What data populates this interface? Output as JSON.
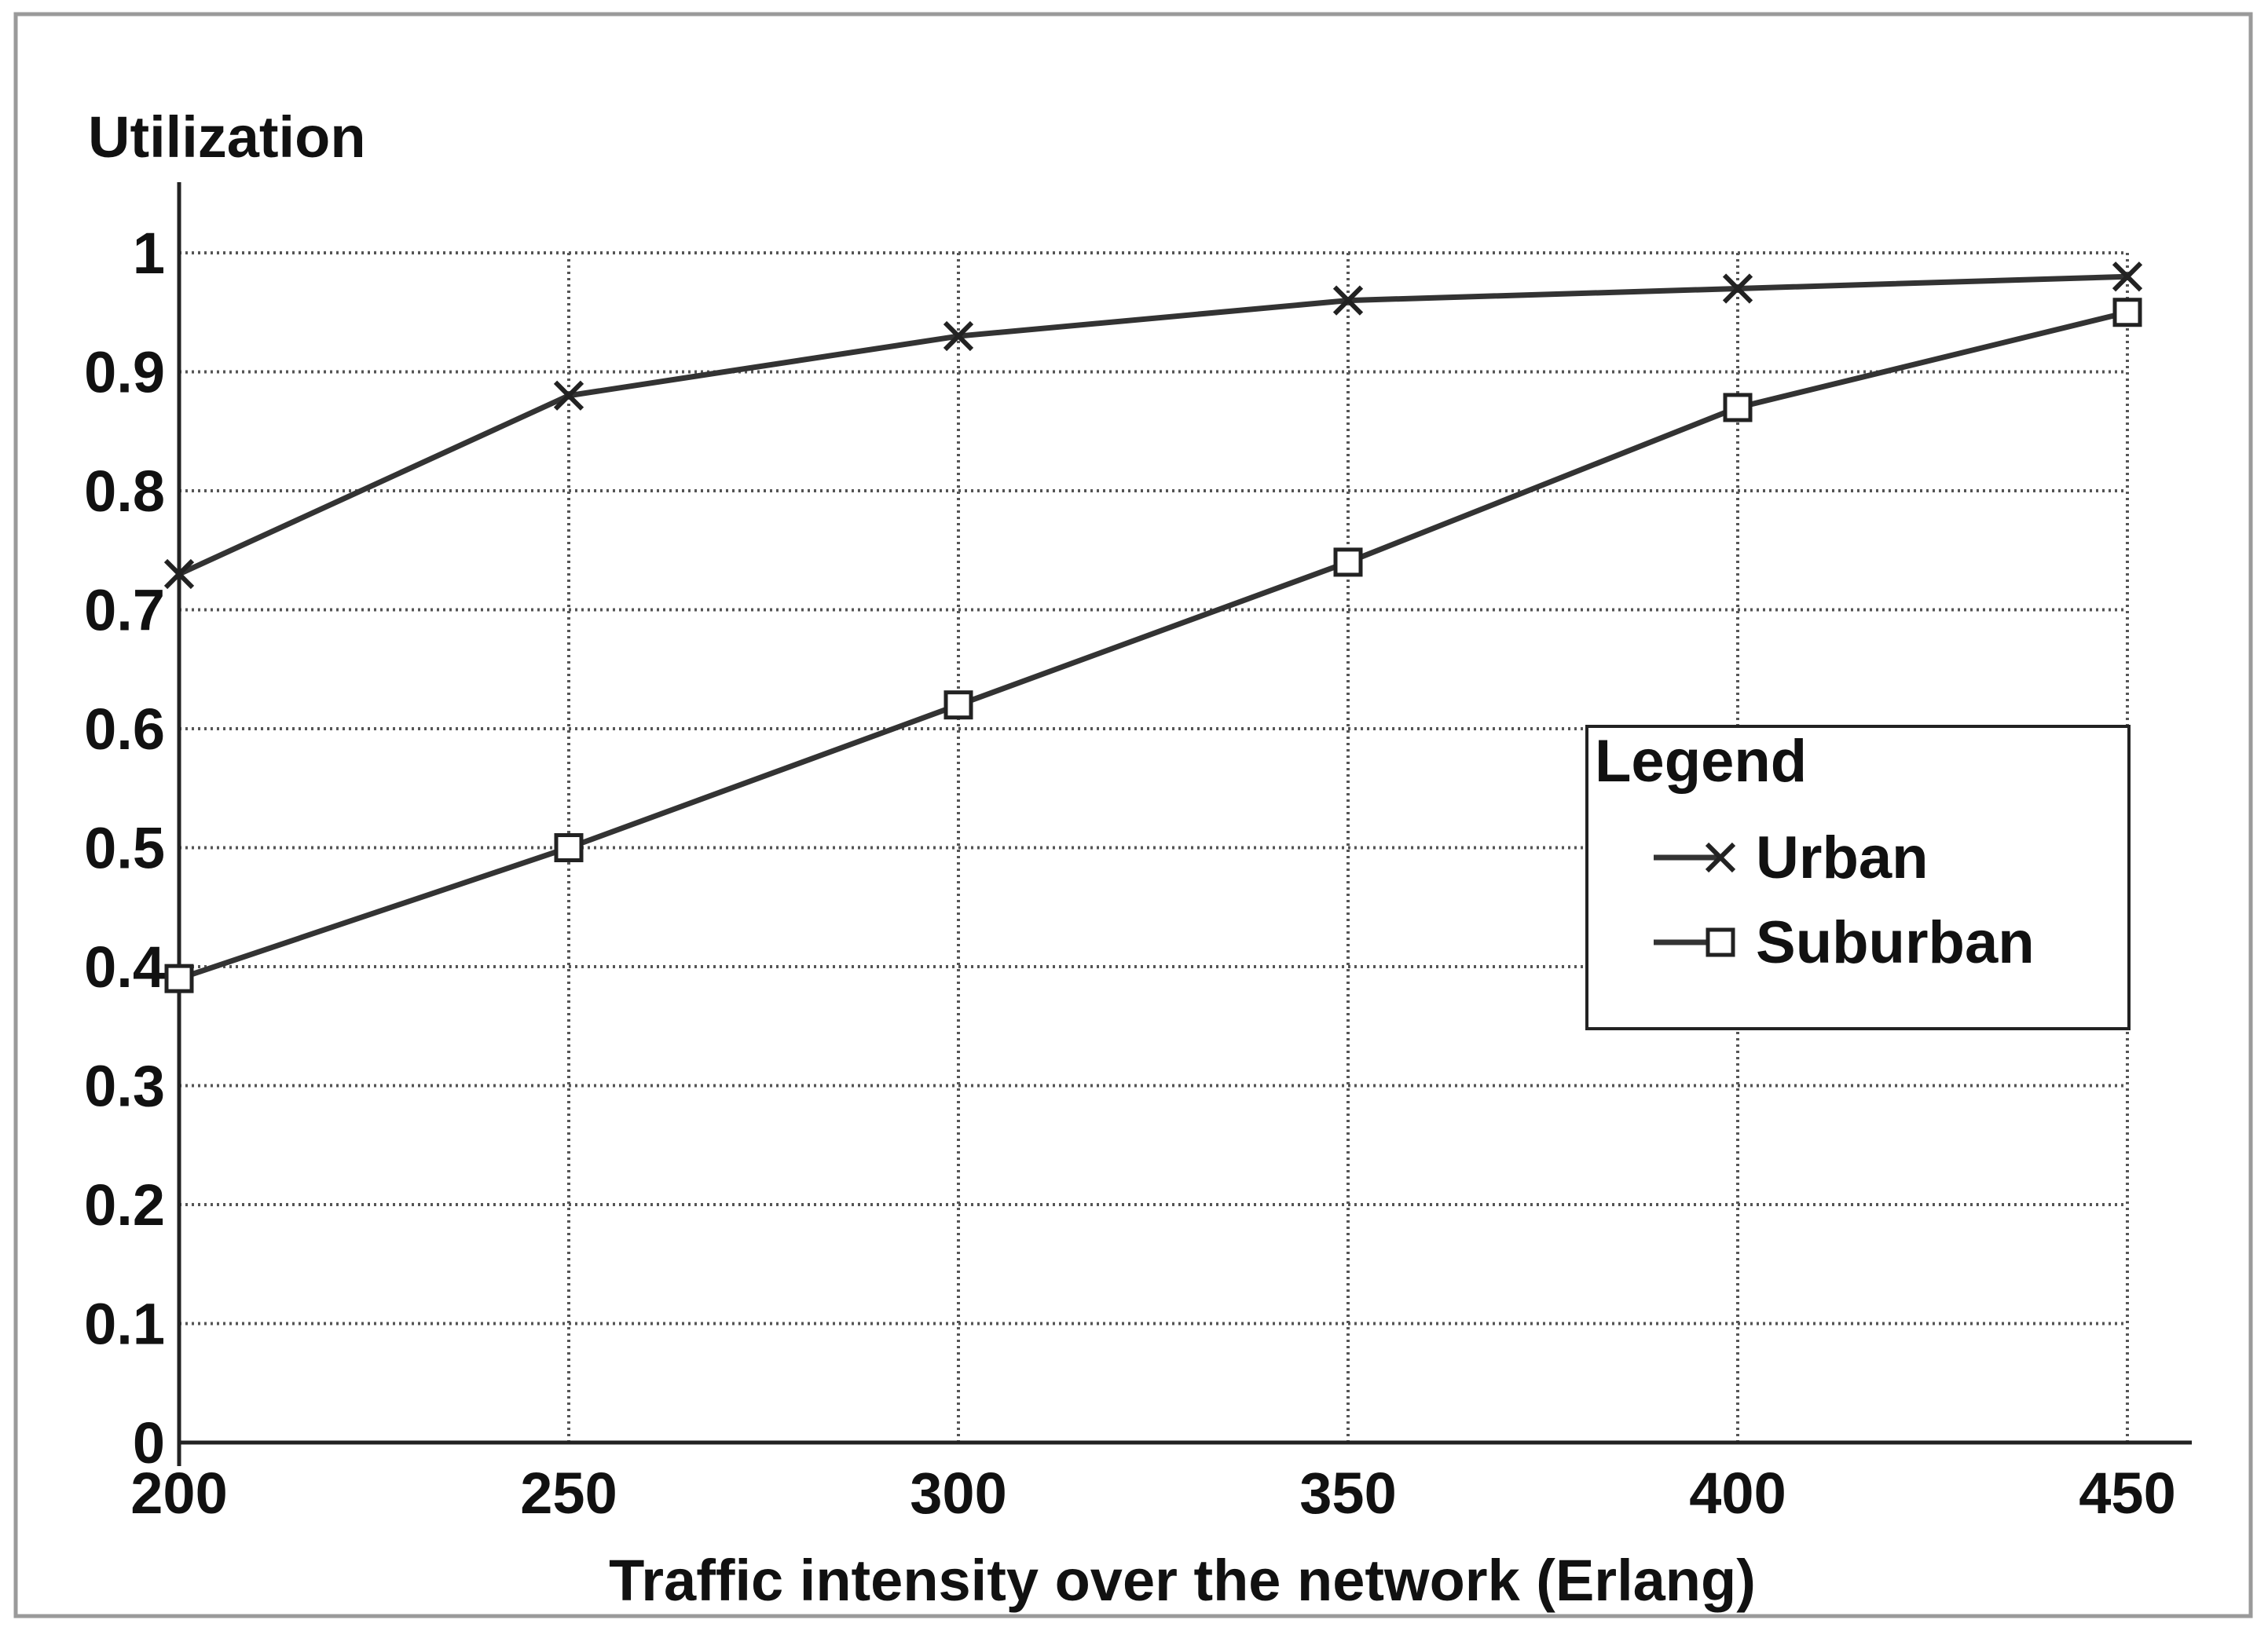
{
  "chart_data": {
    "type": "line",
    "title": "",
    "xlabel": "Traffic intensity over the network (Erlang)",
    "ylabel": "Utilization",
    "x": [
      200,
      250,
      300,
      350,
      400,
      450
    ],
    "xlim": [
      200,
      450
    ],
    "ylim": [
      0,
      1
    ],
    "x_ticks": [
      "200",
      "250",
      "300",
      "350",
      "400",
      "450"
    ],
    "y_ticks": [
      "0",
      "0.1",
      "0.2",
      "0.3",
      "0.4",
      "0.5",
      "0.6",
      "0.7",
      "0.8",
      "0.9",
      "1"
    ],
    "grid": true,
    "legend": {
      "title": "Legend",
      "placement": "right",
      "entries": [
        "Urban",
        "Suburban"
      ]
    },
    "series": [
      {
        "name": "Urban",
        "marker": "x",
        "color": "#333333",
        "values": [
          0.73,
          0.88,
          0.93,
          0.96,
          0.97,
          0.98
        ]
      },
      {
        "name": "Suburban",
        "marker": "square",
        "color": "#333333",
        "values": [
          0.39,
          0.5,
          0.62,
          0.74,
          0.87,
          0.95
        ]
      }
    ]
  }
}
